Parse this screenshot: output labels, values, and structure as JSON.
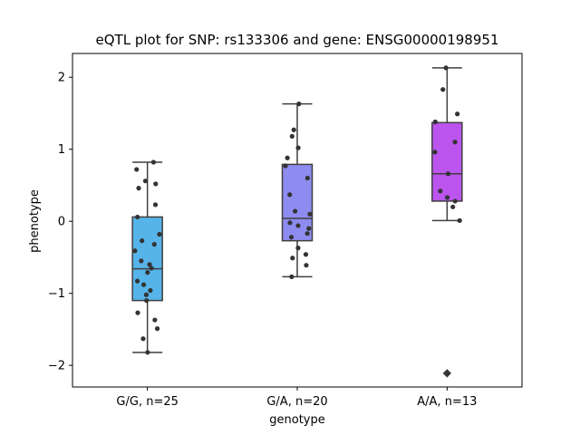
{
  "chart_data": {
    "type": "box",
    "title": "eQTL plot for SNP: rs133306 and gene: ENSG00000198951",
    "xlabel": "genotype",
    "ylabel": "phenotype",
    "ylim": [
      -2.3,
      2.33
    ],
    "yticks": [
      -2,
      -1,
      0,
      1,
      2
    ],
    "ytick_labels": [
      "−2",
      "−1",
      "0",
      "1",
      "2"
    ],
    "grid": false,
    "categories": [
      "G/G, n=25",
      "G/A, n=20",
      "A/A, n=13"
    ],
    "series": [
      {
        "category": "G/G, n=25",
        "color": "#56b4e9",
        "box": {
          "q1": -1.1,
          "median": -0.66,
          "q3": 0.06,
          "whisker_low": -1.82,
          "whisker_high": 0.82
        },
        "outliers": [],
        "points": [
          0.82,
          0.72,
          0.56,
          0.52,
          0.46,
          0.23,
          0.06,
          -0.18,
          -0.27,
          -0.32,
          -0.41,
          -0.55,
          -0.65,
          -0.71,
          -0.83,
          -0.88,
          -0.96,
          -1.02,
          -1.1,
          -1.27,
          -1.37,
          -1.49,
          -1.63,
          -1.82,
          -0.6
        ]
      },
      {
        "category": "G/A, n=20",
        "color": "#8e8cf0",
        "box": {
          "q1": -0.27,
          "median": 0.04,
          "q3": 0.79,
          "whisker_low": -0.77,
          "whisker_high": 1.63
        },
        "outliers": [],
        "points": [
          1.63,
          1.27,
          1.18,
          1.02,
          0.88,
          0.77,
          0.6,
          0.37,
          0.14,
          0.1,
          -0.02,
          -0.06,
          -0.1,
          -0.17,
          -0.22,
          -0.37,
          -0.46,
          -0.51,
          -0.61,
          -0.77
        ]
      },
      {
        "category": "A/A, n=13",
        "color": "#bb55ee",
        "box": {
          "q1": 0.28,
          "median": 0.66,
          "q3": 1.37,
          "whisker_low": 0.01,
          "whisker_high": 2.13
        },
        "outliers": [
          -2.11
        ],
        "points": [
          2.13,
          1.83,
          1.49,
          1.38,
          1.1,
          0.96,
          0.66,
          0.42,
          0.33,
          0.28,
          0.2,
          0.01,
          -2.11
        ]
      }
    ]
  }
}
